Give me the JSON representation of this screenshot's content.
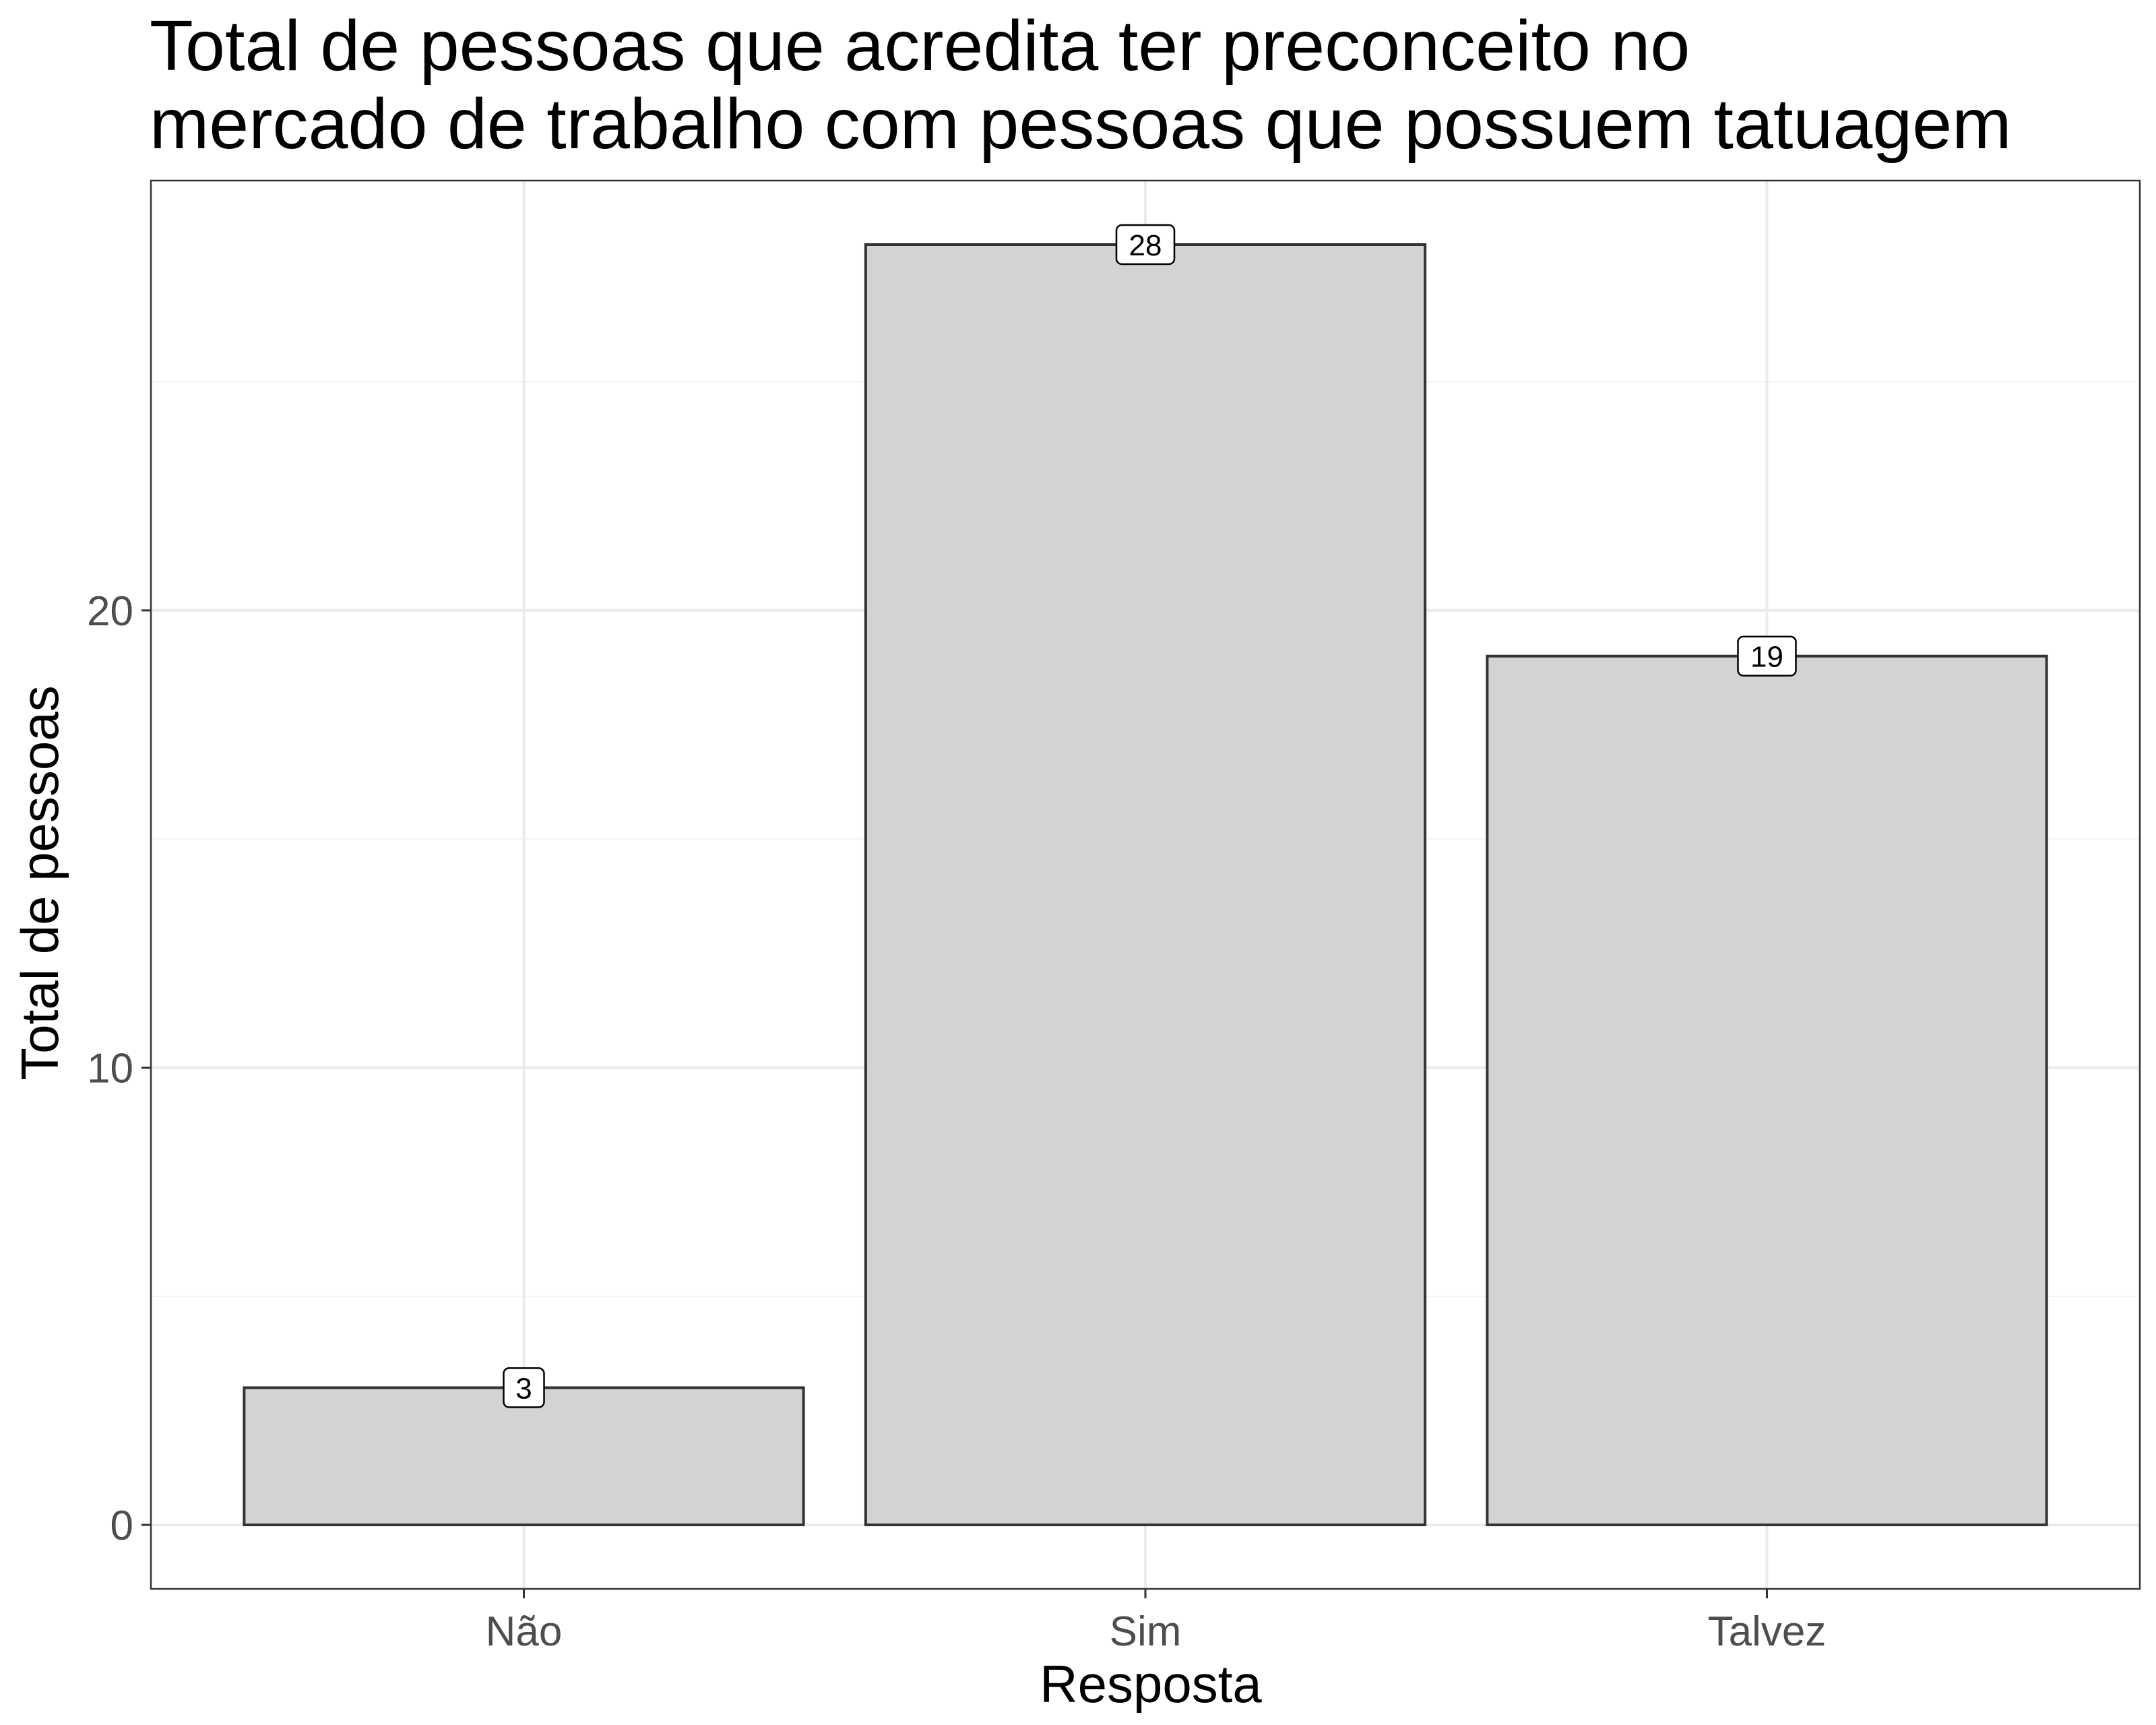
{
  "chart_data": {
    "type": "bar",
    "title_lines": [
      "Total de pessoas que acredita ter preconceito no",
      "mercado de trabalho com pessoas que possuem tatuagem"
    ],
    "xlabel": "Resposta",
    "ylabel": "Total de pessoas",
    "categories": [
      "Não",
      "Sim",
      "Talvez"
    ],
    "values": [
      3,
      28,
      19
    ],
    "data_labels": [
      "3",
      "28",
      "19"
    ],
    "ylim": [
      -1.4,
      29.4
    ],
    "yticks": [
      0,
      10,
      20
    ],
    "ytick_labels": [
      "0",
      "10",
      "20"
    ],
    "minor_yticks": [
      5,
      15,
      25
    ],
    "grid": true,
    "legend": "none",
    "colors": {
      "bar_fill": "#d3d3d3",
      "bar_stroke": "#333333",
      "grid_major": "#ebebeb",
      "grid_minor": "#f4f4f4",
      "panel_border": "#333333",
      "tick_text": "#4d4d4d"
    }
  }
}
